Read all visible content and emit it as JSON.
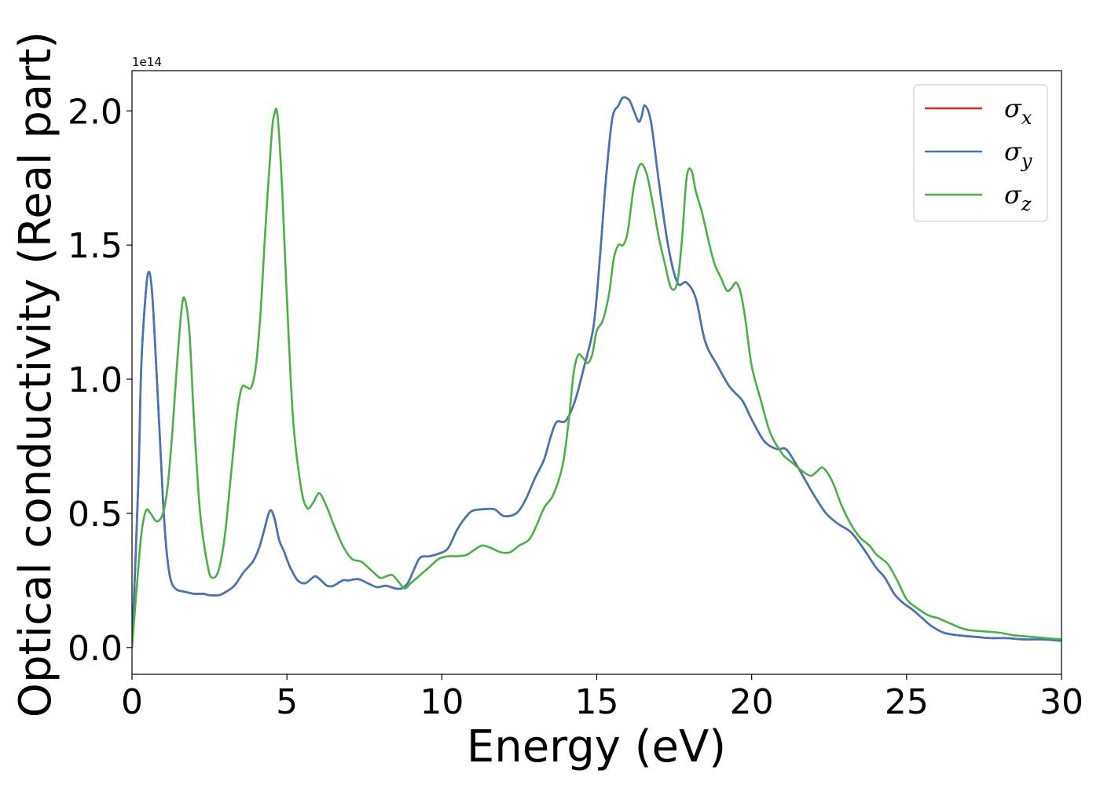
{
  "chart_data": {
    "type": "line",
    "xlabel": "Energy (eV)",
    "ylabel": "Optical conductivity (Real part)",
    "y_offset_label": "1e14",
    "xlim": [
      0,
      30
    ],
    "ylim": [
      -0.1,
      2.15
    ],
    "y_scale_factor": 100000000000000.0,
    "x_ticks": [
      0,
      5,
      10,
      15,
      20,
      25,
      30
    ],
    "x_tick_labels": [
      "0",
      "5",
      "10",
      "15",
      "20",
      "25",
      "30"
    ],
    "y_ticks": [
      0.0,
      0.5,
      1.0,
      1.5,
      2.0
    ],
    "y_tick_labels": [
      "0.0",
      "0.5",
      "1.0",
      "1.5",
      "2.0"
    ],
    "grid": false,
    "legend_position": "top-right",
    "series": [
      {
        "name": "σx",
        "legend_base": "σ",
        "legend_sub": "x",
        "color": "#d62728",
        "x": [
          0.0,
          0.2,
          0.3,
          0.45,
          0.55,
          0.65,
          0.75,
          0.9,
          1.0,
          1.1,
          1.2,
          1.3,
          1.45,
          1.6,
          1.8,
          2.0,
          2.3,
          2.5,
          2.8,
          3.0,
          3.3,
          3.6,
          3.9,
          4.1,
          4.25,
          4.45,
          4.6,
          4.75,
          4.9,
          5.1,
          5.35,
          5.6,
          5.9,
          6.1,
          6.3,
          6.5,
          6.8,
          7.0,
          7.3,
          7.6,
          7.9,
          8.2,
          8.5,
          8.7,
          8.9,
          9.1,
          9.3,
          9.6,
          9.9,
          10.2,
          10.5,
          10.8,
          11.0,
          11.3,
          11.7,
          12.0,
          12.4,
          12.7,
          13.0,
          13.3,
          13.5,
          13.7,
          14.0,
          14.3,
          14.6,
          14.9,
          15.1,
          15.3,
          15.5,
          15.7,
          15.85,
          16.05,
          16.2,
          16.35,
          16.45,
          16.55,
          16.75,
          17.0,
          17.3,
          17.6,
          17.9,
          18.2,
          18.5,
          18.9,
          19.3,
          19.7,
          20.0,
          20.4,
          20.8,
          21.1,
          21.4,
          21.7,
          22.0,
          22.4,
          22.8,
          23.2,
          23.6,
          24.0,
          24.3,
          24.6,
          24.9,
          25.2,
          25.5,
          25.8,
          26.2,
          26.7,
          27.2,
          27.7,
          28.2,
          28.8,
          29.4,
          30.0
        ],
        "y": [
          0.0,
          0.6,
          1.05,
          1.33,
          1.4,
          1.32,
          1.12,
          0.78,
          0.55,
          0.38,
          0.28,
          0.235,
          0.215,
          0.21,
          0.205,
          0.2,
          0.2,
          0.195,
          0.195,
          0.205,
          0.23,
          0.28,
          0.32,
          0.37,
          0.43,
          0.51,
          0.48,
          0.4,
          0.36,
          0.3,
          0.25,
          0.24,
          0.265,
          0.25,
          0.23,
          0.23,
          0.25,
          0.25,
          0.255,
          0.24,
          0.225,
          0.23,
          0.22,
          0.22,
          0.24,
          0.29,
          0.335,
          0.34,
          0.35,
          0.37,
          0.44,
          0.49,
          0.51,
          0.515,
          0.515,
          0.49,
          0.5,
          0.55,
          0.63,
          0.7,
          0.78,
          0.84,
          0.845,
          0.92,
          1.05,
          1.2,
          1.45,
          1.75,
          1.97,
          2.02,
          2.05,
          2.04,
          2.0,
          1.96,
          1.98,
          2.02,
          1.96,
          1.74,
          1.5,
          1.36,
          1.36,
          1.3,
          1.14,
          1.05,
          0.97,
          0.92,
          0.85,
          0.77,
          0.74,
          0.74,
          0.69,
          0.63,
          0.57,
          0.5,
          0.46,
          0.43,
          0.37,
          0.3,
          0.26,
          0.2,
          0.165,
          0.14,
          0.11,
          0.08,
          0.055,
          0.045,
          0.04,
          0.035,
          0.035,
          0.03,
          0.03,
          0.025
        ]
      },
      {
        "name": "σy",
        "legend_base": "σ",
        "legend_sub": "y",
        "color": "#4575b4",
        "x": [
          0.0,
          0.2,
          0.3,
          0.45,
          0.55,
          0.65,
          0.75,
          0.9,
          1.0,
          1.1,
          1.2,
          1.3,
          1.45,
          1.6,
          1.8,
          2.0,
          2.3,
          2.5,
          2.8,
          3.0,
          3.3,
          3.6,
          3.9,
          4.1,
          4.25,
          4.45,
          4.6,
          4.75,
          4.9,
          5.1,
          5.35,
          5.6,
          5.9,
          6.1,
          6.3,
          6.5,
          6.8,
          7.0,
          7.3,
          7.6,
          7.9,
          8.2,
          8.5,
          8.7,
          8.9,
          9.1,
          9.3,
          9.6,
          9.9,
          10.2,
          10.5,
          10.8,
          11.0,
          11.3,
          11.7,
          12.0,
          12.4,
          12.7,
          13.0,
          13.3,
          13.5,
          13.7,
          14.0,
          14.3,
          14.6,
          14.9,
          15.1,
          15.3,
          15.5,
          15.7,
          15.85,
          16.05,
          16.2,
          16.35,
          16.45,
          16.55,
          16.75,
          17.0,
          17.3,
          17.6,
          17.9,
          18.2,
          18.5,
          18.9,
          19.3,
          19.7,
          20.0,
          20.4,
          20.8,
          21.1,
          21.4,
          21.7,
          22.0,
          22.4,
          22.8,
          23.2,
          23.6,
          24.0,
          24.3,
          24.6,
          24.9,
          25.2,
          25.5,
          25.8,
          26.2,
          26.7,
          27.2,
          27.7,
          28.2,
          28.8,
          29.4,
          30.0
        ],
        "y": [
          0.0,
          0.6,
          1.05,
          1.33,
          1.4,
          1.32,
          1.12,
          0.78,
          0.55,
          0.38,
          0.28,
          0.235,
          0.215,
          0.21,
          0.205,
          0.2,
          0.2,
          0.195,
          0.195,
          0.205,
          0.23,
          0.28,
          0.32,
          0.37,
          0.43,
          0.51,
          0.48,
          0.4,
          0.36,
          0.3,
          0.25,
          0.24,
          0.265,
          0.25,
          0.23,
          0.23,
          0.25,
          0.25,
          0.255,
          0.24,
          0.225,
          0.23,
          0.22,
          0.22,
          0.24,
          0.29,
          0.335,
          0.34,
          0.35,
          0.37,
          0.44,
          0.49,
          0.51,
          0.515,
          0.515,
          0.49,
          0.5,
          0.55,
          0.63,
          0.7,
          0.78,
          0.84,
          0.845,
          0.92,
          1.05,
          1.2,
          1.45,
          1.75,
          1.97,
          2.02,
          2.05,
          2.04,
          2.0,
          1.96,
          1.98,
          2.02,
          1.96,
          1.74,
          1.5,
          1.36,
          1.36,
          1.3,
          1.14,
          1.05,
          0.97,
          0.92,
          0.85,
          0.77,
          0.74,
          0.74,
          0.69,
          0.63,
          0.57,
          0.5,
          0.46,
          0.43,
          0.37,
          0.3,
          0.26,
          0.2,
          0.165,
          0.14,
          0.11,
          0.08,
          0.055,
          0.045,
          0.04,
          0.035,
          0.035,
          0.03,
          0.03,
          0.025
        ]
      },
      {
        "name": "σz",
        "legend_base": "σ",
        "legend_sub": "z",
        "color": "#4daf4a",
        "x": [
          0.0,
          0.15,
          0.3,
          0.45,
          0.6,
          0.8,
          1.0,
          1.15,
          1.3,
          1.45,
          1.6,
          1.7,
          1.85,
          2.0,
          2.2,
          2.45,
          2.6,
          2.8,
          3.0,
          3.2,
          3.4,
          3.55,
          3.7,
          3.85,
          4.0,
          4.15,
          4.3,
          4.5,
          4.6,
          4.7,
          4.85,
          5.0,
          5.2,
          5.45,
          5.65,
          5.85,
          6.05,
          6.3,
          6.5,
          6.8,
          7.1,
          7.4,
          7.7,
          8.0,
          8.2,
          8.4,
          8.6,
          8.8,
          9.0,
          9.3,
          9.6,
          9.9,
          10.2,
          10.5,
          10.8,
          11.0,
          11.3,
          11.6,
          11.9,
          12.2,
          12.5,
          12.8,
          13.0,
          13.3,
          13.6,
          13.9,
          14.1,
          14.25,
          14.4,
          14.55,
          14.7,
          14.85,
          15.0,
          15.2,
          15.4,
          15.55,
          15.7,
          15.85,
          16.0,
          16.2,
          16.4,
          16.6,
          16.8,
          17.0,
          17.2,
          17.4,
          17.6,
          17.75,
          17.9,
          18.05,
          18.2,
          18.4,
          18.6,
          18.8,
          19.0,
          19.2,
          19.35,
          19.5,
          19.65,
          19.8,
          20.0,
          20.3,
          20.6,
          21.0,
          21.3,
          21.6,
          21.9,
          22.1,
          22.3,
          22.6,
          22.9,
          23.2,
          23.5,
          23.8,
          24.0,
          24.2,
          24.4,
          24.7,
          25.0,
          25.3,
          25.7,
          26.0,
          26.3,
          26.7,
          27.0,
          27.5,
          28.0,
          28.5,
          29.0,
          29.5,
          30.0
        ],
        "y": [
          0.0,
          0.22,
          0.42,
          0.51,
          0.5,
          0.47,
          0.5,
          0.6,
          0.8,
          1.05,
          1.26,
          1.3,
          1.18,
          0.85,
          0.5,
          0.3,
          0.26,
          0.29,
          0.42,
          0.65,
          0.88,
          0.97,
          0.97,
          0.97,
          1.05,
          1.25,
          1.55,
          1.9,
          1.99,
          1.98,
          1.7,
          1.3,
          0.85,
          0.6,
          0.52,
          0.54,
          0.575,
          0.52,
          0.46,
          0.38,
          0.33,
          0.32,
          0.29,
          0.26,
          0.265,
          0.27,
          0.245,
          0.22,
          0.24,
          0.27,
          0.3,
          0.33,
          0.34,
          0.34,
          0.345,
          0.36,
          0.38,
          0.37,
          0.355,
          0.355,
          0.38,
          0.4,
          0.44,
          0.52,
          0.57,
          0.68,
          0.85,
          1.02,
          1.09,
          1.08,
          1.06,
          1.09,
          1.18,
          1.22,
          1.32,
          1.45,
          1.5,
          1.5,
          1.55,
          1.72,
          1.8,
          1.77,
          1.66,
          1.53,
          1.43,
          1.34,
          1.36,
          1.52,
          1.75,
          1.78,
          1.7,
          1.62,
          1.52,
          1.43,
          1.38,
          1.33,
          1.34,
          1.36,
          1.32,
          1.22,
          1.05,
          0.92,
          0.8,
          0.72,
          0.69,
          0.66,
          0.64,
          0.655,
          0.67,
          0.62,
          0.53,
          0.46,
          0.41,
          0.38,
          0.35,
          0.33,
          0.31,
          0.25,
          0.18,
          0.15,
          0.12,
          0.11,
          0.095,
          0.075,
          0.065,
          0.06,
          0.055,
          0.045,
          0.04,
          0.035,
          0.03
        ]
      }
    ]
  }
}
